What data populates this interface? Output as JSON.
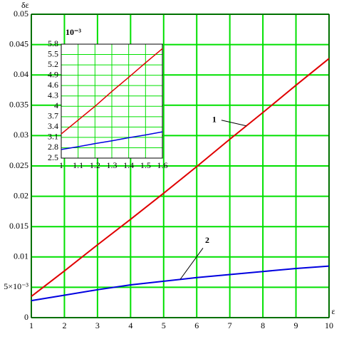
{
  "chart_data": [
    {
      "type": "line",
      "y_label": "δε",
      "x_label": "ε",
      "x": [
        1,
        2,
        3,
        4,
        5,
        6,
        7,
        8,
        9,
        10
      ],
      "series": [
        {
          "label": "1",
          "color": "#e00000",
          "values": [
            0.0035,
            0.0077,
            0.012,
            0.0162,
            0.0205,
            0.0249,
            0.0294,
            0.0338,
            0.0383,
            0.0427
          ]
        },
        {
          "label": "2",
          "color": "#0000e0",
          "values": [
            0.0028,
            0.0037,
            0.0046,
            0.0054,
            0.006,
            0.0066,
            0.0071,
            0.0076,
            0.0081,
            0.0085
          ]
        }
      ],
      "xlim": [
        1,
        10
      ],
      "xticks": [
        1,
        2,
        3,
        4,
        5,
        6,
        7,
        8,
        9,
        10
      ],
      "ylim": [
        0,
        0.05
      ],
      "yticks": [
        0,
        {
          "value": 0.005,
          "label": "5×10⁻³"
        },
        0.01,
        0.015,
        0.02,
        0.025,
        0.03,
        0.035,
        0.04,
        0.045,
        0.05
      ],
      "grid": true,
      "grid_color": "#00e000"
    },
    {
      "type": "line",
      "y_label": "10⁻³",
      "x": [
        1,
        1.1,
        1.2,
        1.3,
        1.4,
        1.5,
        1.6
      ],
      "series": [
        {
          "color": "#e00000",
          "values": [
            3.2,
            3.6,
            4.0,
            4.43,
            4.84,
            5.26,
            5.67
          ]
        },
        {
          "color": "#0000e0",
          "values": [
            2.75,
            2.83,
            2.92,
            3.0,
            3.09,
            3.17,
            3.26
          ]
        }
      ],
      "xlim": [
        1,
        1.6
      ],
      "xticks": [
        1,
        1.1,
        1.2,
        1.3,
        1.4,
        1.5,
        1.6
      ],
      "ylim": [
        2.5,
        5.8
      ],
      "yticks": [
        2.5,
        2.8,
        3.1,
        3.4,
        3.7,
        4,
        4.3,
        4.6,
        4.9,
        5.2,
        5.5,
        5.8
      ],
      "grid": true,
      "grid_color": "#00e000"
    }
  ]
}
